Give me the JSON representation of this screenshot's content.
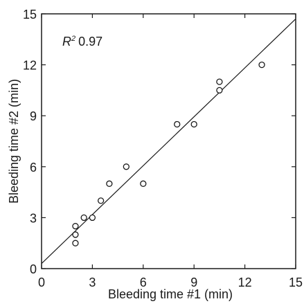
{
  "chart_data": {
    "type": "scatter",
    "title": "",
    "xlabel": "Bleeding time #1 (min)",
    "ylabel": "Bleeding time #2 (min)",
    "xlim": [
      0,
      15
    ],
    "ylim": [
      0,
      15
    ],
    "xticks": [
      0,
      3,
      6,
      9,
      12,
      15
    ],
    "yticks": [
      0,
      3,
      6,
      9,
      12,
      15
    ],
    "grid": false,
    "marker": "open-circle",
    "annotation": {
      "r2_symbol": "R",
      "r2_superscript": "2",
      "r2_value": "0.97"
    },
    "points": [
      {
        "x": 2.0,
        "y": 1.5
      },
      {
        "x": 2.0,
        "y": 2.0
      },
      {
        "x": 2.0,
        "y": 2.5
      },
      {
        "x": 2.5,
        "y": 3.0
      },
      {
        "x": 3.0,
        "y": 3.0
      },
      {
        "x": 3.5,
        "y": 4.0
      },
      {
        "x": 4.0,
        "y": 5.0
      },
      {
        "x": 5.0,
        "y": 6.0
      },
      {
        "x": 6.0,
        "y": 5.0
      },
      {
        "x": 8.0,
        "y": 8.5
      },
      {
        "x": 9.0,
        "y": 8.5
      },
      {
        "x": 10.5,
        "y": 10.5
      },
      {
        "x": 10.5,
        "y": 11.0
      },
      {
        "x": 13.0,
        "y": 12.0
      }
    ],
    "fit_line": {
      "x": [
        0,
        15
      ],
      "y": [
        0.3,
        14.7
      ]
    }
  }
}
